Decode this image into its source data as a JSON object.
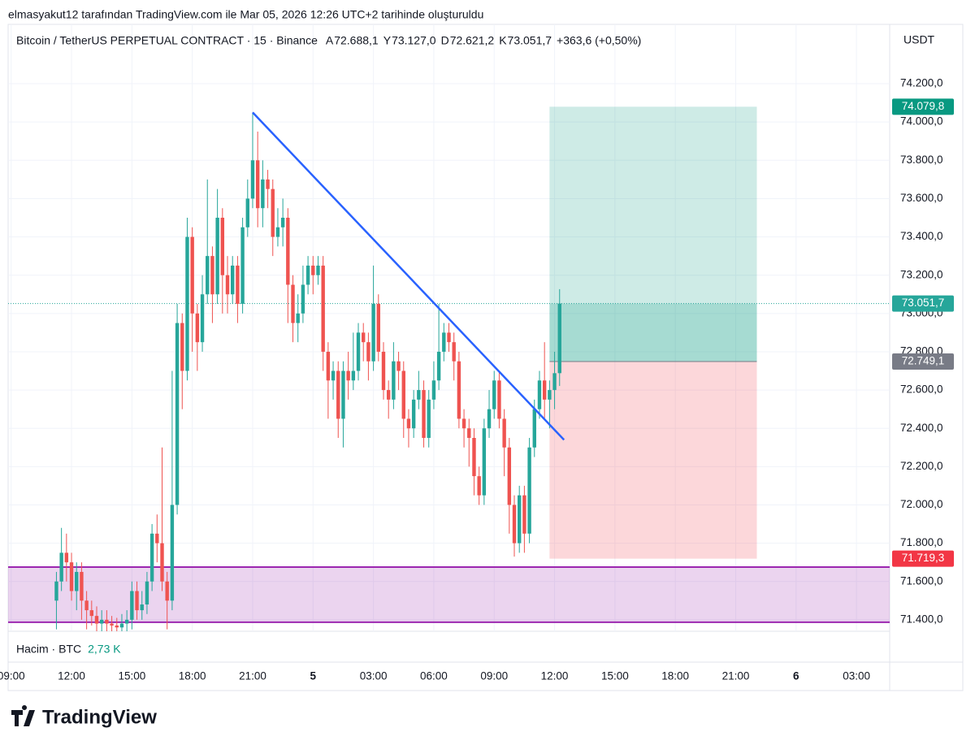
{
  "header": {
    "caption": "elmasyakut12 tarafından TradingView.com ile Mar 05, 2026 12:26 UTC+2 tarihinde oluşturuldu",
    "logo": "TradingView"
  },
  "chart_data": {
    "type": "candlestick",
    "title": "Bitcoin / TetherUS PERPETUAL CONTRACT · 15 · Binance",
    "ohlc_legend": [
      {
        "key": "A",
        "text": "72.688,1"
      },
      {
        "key": "Y",
        "text": "73.127,0"
      },
      {
        "key": "D",
        "text": "72.621,2"
      },
      {
        "key": "K",
        "text": "73.051,7"
      }
    ],
    "change": "+363,6 (+0,50%)",
    "currency": "USDT",
    "volume_label": "Hacim · BTC",
    "volume_value": "2,73 K",
    "up_color": "#26a69a",
    "down_color": "#ef5350",
    "grid": true,
    "xlim": [
      8.85,
      52.65
    ],
    "ylim": [
      71340,
      74510
    ],
    "xticks": [
      {
        "value": 9,
        "label": "09:00"
      },
      {
        "value": 12,
        "label": "12:00"
      },
      {
        "value": 15,
        "label": "15:00"
      },
      {
        "value": 18,
        "label": "18:00"
      },
      {
        "value": 21,
        "label": "21:00"
      },
      {
        "value": 24,
        "label": "5"
      },
      {
        "value": 27,
        "label": "03:00"
      },
      {
        "value": 30,
        "label": "06:00"
      },
      {
        "value": 33,
        "label": "09:00"
      },
      {
        "value": 36,
        "label": "12:00"
      },
      {
        "value": 39,
        "label": "15:00"
      },
      {
        "value": 42,
        "label": "18:00"
      },
      {
        "value": 45,
        "label": "21:00"
      },
      {
        "value": 48,
        "label": "6"
      },
      {
        "value": 51,
        "label": "03:00"
      }
    ],
    "yticks": [
      {
        "value": 71400,
        "label": "71.400,0"
      },
      {
        "value": 71600,
        "label": "71.600,0"
      },
      {
        "value": 71800,
        "label": "71.800,0"
      },
      {
        "value": 72000,
        "label": "72.000,0"
      },
      {
        "value": 72200,
        "label": "72.200,0"
      },
      {
        "value": 72400,
        "label": "72.400,0"
      },
      {
        "value": 72600,
        "label": "72.600,0"
      },
      {
        "value": 72800,
        "label": "72.800,0"
      },
      {
        "value": 73000,
        "label": "73.000,0"
      },
      {
        "value": 73200,
        "label": "73.200,0"
      },
      {
        "value": 73400,
        "label": "73.400,0"
      },
      {
        "value": 73600,
        "label": "73.600,0"
      },
      {
        "value": 73800,
        "label": "73.800,0"
      },
      {
        "value": 74000,
        "label": "74.000,0"
      },
      {
        "value": 74200,
        "label": "74.200,0"
      }
    ],
    "x": [
      11.25,
      11.5,
      11.75,
      12,
      12.25,
      12.5,
      12.75,
      13,
      13.25,
      13.5,
      13.75,
      14,
      14.25,
      14.5,
      14.75,
      15,
      15.25,
      15.5,
      15.75,
      16,
      16.25,
      16.5,
      16.75,
      17,
      17.25,
      17.5,
      17.75,
      18,
      18.25,
      18.5,
      18.75,
      19,
      19.25,
      19.5,
      19.75,
      20,
      20.25,
      20.5,
      20.75,
      21,
      21.25,
      21.5,
      21.75,
      22,
      22.25,
      22.5,
      22.75,
      23,
      23.25,
      23.5,
      23.75,
      24,
      24.25,
      24.5,
      24.75,
      25,
      25.25,
      25.5,
      25.75,
      26,
      26.25,
      26.5,
      26.75,
      27,
      27.25,
      27.5,
      27.75,
      28,
      28.25,
      28.5,
      28.75,
      29,
      29.25,
      29.5,
      29.75,
      30,
      30.25,
      30.5,
      30.75,
      31,
      31.25,
      31.5,
      31.75,
      32,
      32.25,
      32.5,
      32.75,
      33,
      33.25,
      33.5,
      33.75,
      34,
      34.25,
      34.5,
      34.75,
      35,
      35.25,
      35.5,
      35.75,
      36,
      36.25
    ],
    "open": [
      71500,
      71600,
      71750,
      71700,
      71550,
      71650,
      71500,
      71450,
      71420,
      71380,
      71400,
      71380,
      71370,
      71360,
      71380,
      71400,
      71550,
      71450,
      71480,
      71600,
      71850,
      71800,
      71600,
      71500,
      72000,
      72950,
      72700,
      73400,
      73000,
      72850,
      73100,
      73300,
      73100,
      73500,
      73200,
      73100,
      73250,
      73050,
      73450,
      73600,
      73800,
      73550,
      73700,
      73650,
      73400,
      73450,
      73500,
      73150,
      72950,
      73000,
      73150,
      73250,
      73200,
      73250,
      72800,
      72650,
      72700,
      72450,
      72700,
      72650,
      72700,
      72900,
      72850,
      72750,
      73050,
      72800,
      72600,
      72550,
      72750,
      72700,
      72450,
      72400,
      72550,
      72600,
      72350,
      72550,
      72650,
      72800,
      72900,
      72850,
      72750,
      72450,
      72400,
      72350,
      72150,
      72050,
      72400,
      72500,
      72650,
      72450,
      72300,
      72000,
      71800,
      72050,
      71850,
      72300,
      72500,
      72650,
      72550,
      72600,
      72688.1
    ],
    "high": [
      71650,
      71880,
      71850,
      71750,
      71700,
      71700,
      71550,
      71500,
      71470,
      71450,
      71450,
      71420,
      71410,
      71430,
      71450,
      71600,
      71600,
      71550,
      71650,
      71900,
      71950,
      72300,
      71650,
      72700,
      73050,
      73000,
      73500,
      73450,
      73050,
      73200,
      73700,
      73350,
      73650,
      73550,
      73300,
      73300,
      73300,
      73500,
      73700,
      74050,
      73950,
      73800,
      73750,
      73700,
      73550,
      73600,
      73550,
      73200,
      73100,
      73250,
      73300,
      73300,
      73300,
      73300,
      72850,
      72750,
      72750,
      72750,
      72800,
      72900,
      72950,
      72950,
      72900,
      73250,
      73100,
      72850,
      72650,
      72850,
      72800,
      72750,
      72500,
      72600,
      72700,
      72650,
      72600,
      72750,
      73050,
      72950,
      72950,
      72900,
      72800,
      72500,
      72450,
      72400,
      72200,
      72450,
      72600,
      72700,
      72700,
      72500,
      72350,
      72050,
      72100,
      72100,
      72350,
      72550,
      72700,
      72850,
      72650,
      72800,
      73127
    ],
    "low": [
      71350,
      71550,
      71600,
      71500,
      71450,
      71400,
      71350,
      71370,
      71330,
      71330,
      71330,
      71320,
      71310,
      71310,
      71330,
      71350,
      71400,
      71400,
      71430,
      71550,
      71700,
      71550,
      71350,
      71450,
      71950,
      72500,
      72650,
      72800,
      72700,
      72800,
      73050,
      72950,
      73050,
      73000,
      73000,
      73050,
      72950,
      73000,
      73400,
      73550,
      73450,
      73450,
      73550,
      73300,
      73350,
      73350,
      72950,
      72850,
      72850,
      72950,
      73100,
      73100,
      73150,
      72700,
      72450,
      72550,
      72350,
      72300,
      72550,
      72600,
      72650,
      72750,
      72650,
      72700,
      72750,
      72550,
      72450,
      72500,
      72600,
      72350,
      72300,
      72350,
      72500,
      72300,
      72300,
      72500,
      72600,
      72750,
      72800,
      72650,
      72400,
      72300,
      72200,
      72050,
      72000,
      72000,
      72350,
      72450,
      72400,
      72150,
      71850,
      71730,
      71750,
      71750,
      71800,
      72250,
      72450,
      72450,
      72400,
      72500,
      72621.2
    ],
    "close": [
      71600,
      71750,
      71700,
      71550,
      71650,
      71500,
      71450,
      71420,
      71380,
      71400,
      71380,
      71370,
      71360,
      71380,
      71400,
      71550,
      71450,
      71480,
      71600,
      71850,
      71800,
      71600,
      71500,
      72000,
      72950,
      72700,
      73400,
      73000,
      72850,
      73100,
      73300,
      73100,
      73500,
      73200,
      73100,
      73250,
      73050,
      73450,
      73600,
      73800,
      73550,
      73700,
      73650,
      73400,
      73450,
      73500,
      73150,
      72950,
      73000,
      73150,
      73250,
      73200,
      73250,
      72800,
      72650,
      72700,
      72450,
      72700,
      72650,
      72700,
      72900,
      72850,
      72750,
      73050,
      72800,
      72600,
      72550,
      72750,
      72700,
      72450,
      72400,
      72550,
      72600,
      72350,
      72550,
      72650,
      72800,
      72900,
      72850,
      72750,
      72450,
      72400,
      72350,
      72150,
      72050,
      72400,
      72500,
      72650,
      72450,
      72300,
      72000,
      71800,
      72050,
      71850,
      72300,
      72500,
      72650,
      72550,
      72600,
      72688.1,
      73051.7
    ],
    "trendline": {
      "x": [
        21,
        36.47
      ],
      "y": [
        74050,
        72340
      ],
      "color": "#2962ff"
    },
    "zone": {
      "y": [
        71387,
        71675
      ],
      "color": "#9c27b0"
    },
    "position": {
      "x": [
        35.75,
        46.05
      ],
      "target": {
        "value": 74079.8,
        "label": "74.079,8"
      },
      "entry": {
        "value": 72749.1,
        "label": "72.749,1"
      },
      "stop": {
        "value": 71719.3,
        "label": "71.719,3"
      },
      "current": {
        "value": 73051.7,
        "label": "73.051,7"
      }
    }
  }
}
